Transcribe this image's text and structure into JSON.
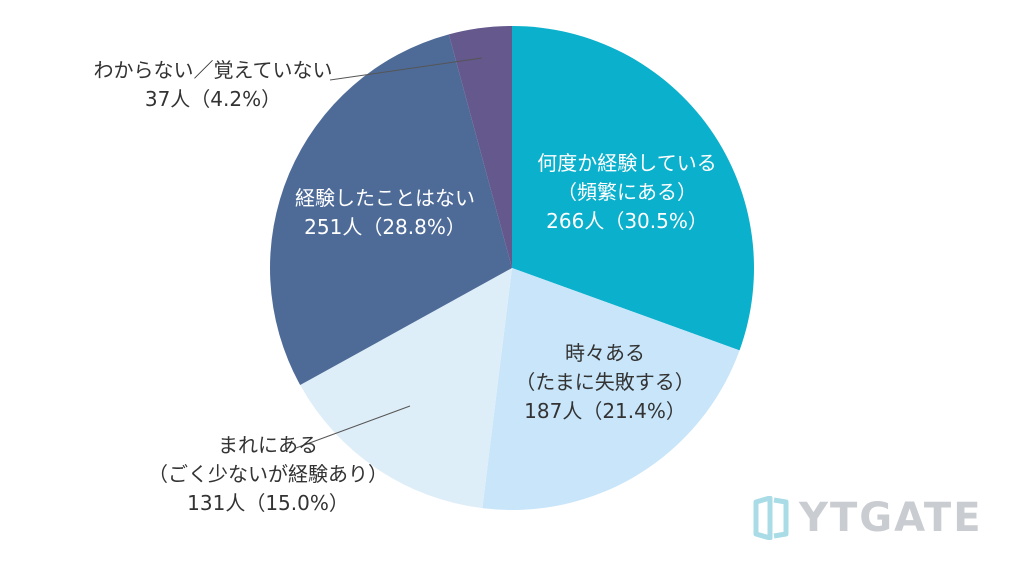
{
  "chart_data": {
    "type": "pie",
    "slices": [
      {
        "label": "何度か経験している",
        "sublabel": "（頻繁にある）",
        "count": "266人",
        "percent_text": "（30.5%）",
        "value": 30.5,
        "color": "#0ab0cc"
      },
      {
        "label": "時々ある",
        "sublabel": "（たまに失敗する）",
        "count": "187人",
        "percent_text": "（21.4%）",
        "value": 21.4,
        "color": "#c8e5fa"
      },
      {
        "label": "まれにある",
        "sublabel": "（ごく少ないが経験あり）",
        "count": "131人",
        "percent_text": "（15.0%）",
        "value": 15.0,
        "color": "#deeef8"
      },
      {
        "label": "経験したことはない",
        "sublabel": "",
        "count": "251人",
        "percent_text": "（28.8%）",
        "value": 28.8,
        "color": "#4e6b98"
      },
      {
        "label": "わからない／覚えていない",
        "sublabel": "",
        "count": "37人",
        "percent_text": "（4.2%）",
        "value": 4.2,
        "color": "#64588c"
      }
    ]
  },
  "brand": {
    "logo_text": "YTGATE",
    "logo_color": "#c9ccd0",
    "icon_color": "#a9dce6"
  },
  "icons": [
    "brand-logo-icon"
  ]
}
